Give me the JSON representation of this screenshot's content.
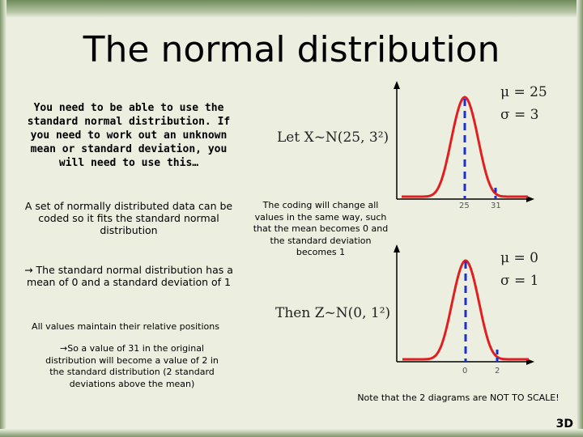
{
  "slide": {
    "title": "The normal distribution",
    "intro": "You need to be able to use the standard normal distribution. If you need to work out an unknown mean or standard deviation, you will need to use this…",
    "coded": "A set of normally distributed data can be coded so it fits the standard normal distribution",
    "standard": "→ The standard normal distribution has a mean of 0 and a standard deviation of 1",
    "relative": "All values maintain their relative positions",
    "example": "→So a value of 31 in the original distribution will become a value of 2 in the standard distribution (2 standard deviations above the mean)",
    "coding_note": "The coding will change all values in the same way, such that the mean becomes 0 and the standard deviation becomes 1",
    "scale_note": "Note that the 2 diagrams are NOT TO SCALE!",
    "logo": "3D"
  },
  "diagram_top": {
    "let_text": "Let X~N(25, 3²)",
    "mu": "μ = 25",
    "sigma": "σ = 3",
    "ticks": [
      "25",
      "31"
    ]
  },
  "diagram_bottom": {
    "then_text": "Then Z~N(0, 1²)",
    "mu": "μ = 0",
    "sigma": "σ = 1",
    "ticks": [
      "0",
      "2"
    ]
  },
  "colors": {
    "curve": "#e02020",
    "dashed": "#1f2fcc",
    "background": "#ecefe0"
  }
}
